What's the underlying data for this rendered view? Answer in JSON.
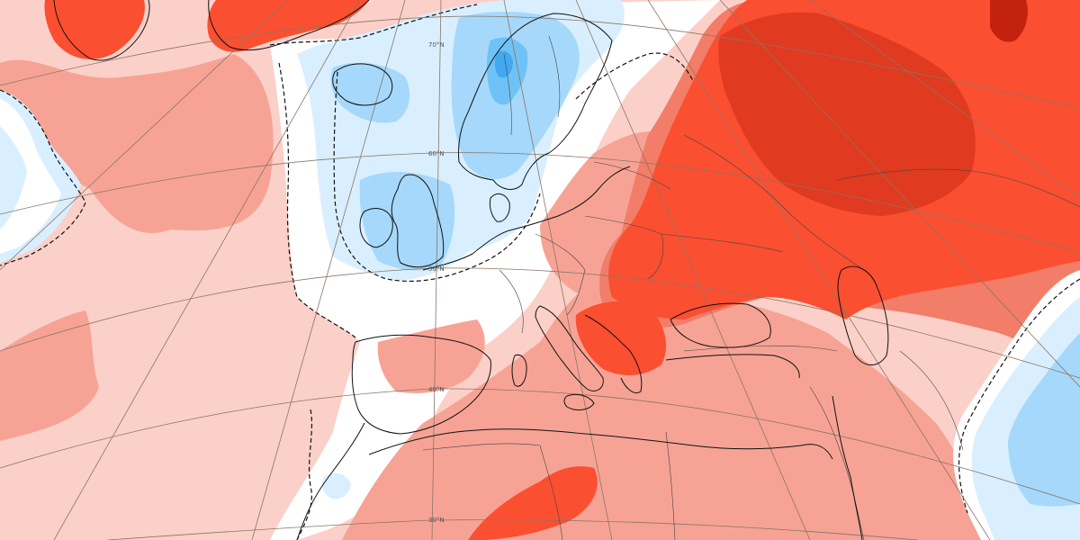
{
  "map": {
    "colors": {
      "ocean_background": "#fbd0c8",
      "anom_pos_1": "#fbd0c8",
      "anom_pos_2": "#f6a395",
      "anom_pos_3": "#f27d68",
      "anom_pos_4": "#fb4f31",
      "anom_pos_5": "#e03a20",
      "anom_pos_6": "#c2220e",
      "neutral": "#ffffff",
      "anom_neg_1": "#d9efff",
      "anom_neg_2": "#a6d8fb",
      "anom_neg_3": "#6fc2f5",
      "anom_neg_4": "#42a8ef",
      "coastline": "#111111",
      "border": "#555555",
      "graticule": "#8a7565"
    },
    "latitude_labels": {
      "lat_70": "70°N",
      "lat_60": "60°N",
      "lat_50": "50°N",
      "lat_40": "40°N",
      "lat_30": "30°N"
    }
  }
}
